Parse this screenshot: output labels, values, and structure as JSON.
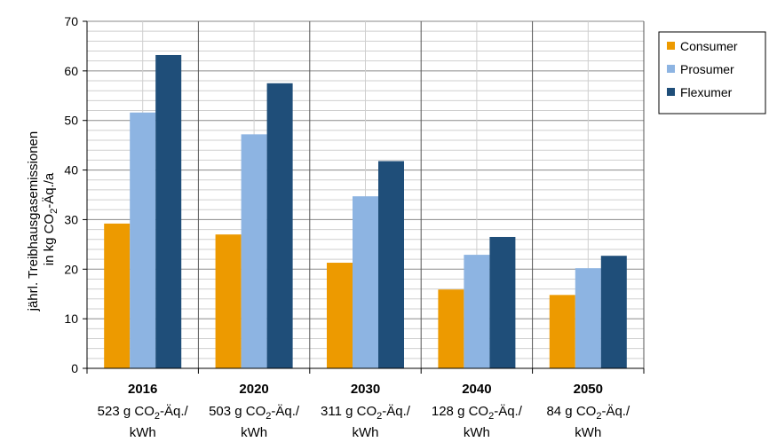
{
  "chart_data": {
    "type": "bar",
    "ylabel_line1": "jährl. Treibhausgasemissionen",
    "ylabel_line2_pre": "in kg CO",
    "ylabel_line2_sub": "2",
    "ylabel_line2_post": "-Äq./a",
    "ylim": [
      0,
      70
    ],
    "yticks": [
      "0",
      "10",
      "20",
      "30",
      "40",
      "50",
      "60",
      "70"
    ],
    "grid": true,
    "legend_position": "top-right",
    "categories": [
      {
        "year": "2016",
        "line2_pre": "523 g CO",
        "line2_sub": "2",
        "line2_post": "-Äq./",
        "line3": "kWh"
      },
      {
        "year": "2020",
        "line2_pre": "503 g CO",
        "line2_sub": "2",
        "line2_post": "-Äq./",
        "line3": "kWh"
      },
      {
        "year": "2030",
        "line2_pre": "311 g CO",
        "line2_sub": "2",
        "line2_post": "-Äq./",
        "line3": "kWh"
      },
      {
        "year": "2040",
        "line2_pre": "128 g CO",
        "line2_sub": "2",
        "line2_post": "-Äq./",
        "line3": "kWh"
      },
      {
        "year": "2050",
        "line2_pre": "84 g CO",
        "line2_sub": "2",
        "line2_post": "-Äq./",
        "line3": "kWh"
      }
    ],
    "series": [
      {
        "name": "Consumer",
        "color": "#ED9A00",
        "values": [
          29.2,
          27.0,
          21.3,
          15.9,
          14.8
        ]
      },
      {
        "name": "Prosumer",
        "color": "#8DB4E2",
        "values": [
          51.6,
          47.2,
          34.7,
          22.9,
          20.2
        ]
      },
      {
        "name": "Flexumer",
        "color": "#1F4E79",
        "values": [
          63.2,
          57.5,
          41.8,
          26.5,
          22.7
        ]
      }
    ]
  }
}
